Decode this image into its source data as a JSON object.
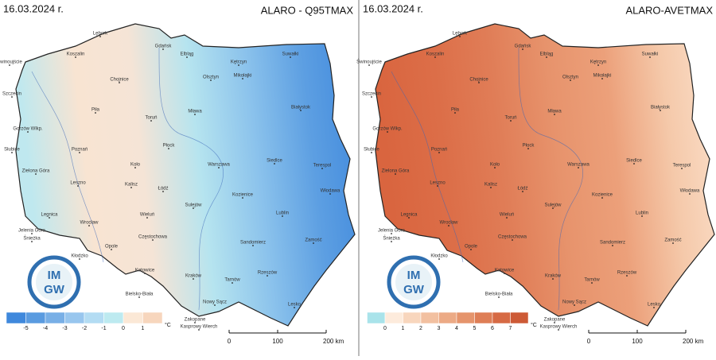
{
  "panels": [
    {
      "date": "16.03.2024 r.",
      "title": "ALARO - Q95TMAX",
      "legend": {
        "ticks": [
          -5,
          -4,
          -3,
          -2,
          -1,
          0,
          1
        ],
        "unit": "°C",
        "colors": [
          "#3f88dc",
          "#5a9be0",
          "#78afe6",
          "#98c6ee",
          "#b3dcf3",
          "#bdeaf0",
          "#fbe8d6",
          "#f7d6bd"
        ]
      },
      "map_colors": [
        "#bfe8ef",
        "#f8e4d2",
        "#f5e4d6",
        "#b6e4ef",
        "#8cc3ec",
        "#5d9fe2",
        "#3f88dc"
      ]
    },
    {
      "date": "16.03.2024 r.",
      "title": "ALARO-AVETMAX",
      "legend": {
        "ticks": [
          0,
          1,
          2,
          3,
          4,
          5,
          6,
          7
        ],
        "unit": "°C",
        "colors": [
          "#a9e3ea",
          "#fdebdc",
          "#f8d6bd",
          "#f2c0a0",
          "#ecaa85",
          "#e5946c",
          "#de7e56",
          "#d66a44",
          "#cd5a36"
        ]
      },
      "map_colors": [
        "#d9653f",
        "#dc6e48",
        "#e07d57",
        "#e7936c",
        "#eca07a",
        "#f5c9aa",
        "#fbe0cb"
      ]
    }
  ],
  "logo": {
    "top": "IM",
    "bottom": "GW"
  },
  "scale_bar": {
    "ticks": [
      0,
      100,
      {
        "value": 200,
        "label": "200 km"
      }
    ]
  },
  "cities": [
    "Lębork",
    "Gdańsk",
    "Elbląg",
    "Kętrzyn",
    "Suwałki",
    "Świnoujście",
    "Koszalin",
    "Chojnice",
    "Olsztyn",
    "Mikołajki",
    "Szczecin",
    "Piła",
    "Toruń",
    "Mława",
    "Białystok",
    "Gorzów Wlkp.",
    "Płock",
    "Poznań",
    "Słubice",
    "Koło",
    "Warszawa",
    "Siedlce",
    "Terespol",
    "Zielona Góra",
    "Leszno",
    "Kalisz",
    "Łódź",
    "Kozienice",
    "Włodawa",
    "Legnica",
    "Wieluń",
    "Sulejów",
    "Lublin",
    "Jelenia Góra",
    "Wrocław",
    "Częstochowa",
    "Śnieżka",
    "Opole",
    "Kłodzko",
    "Katowice",
    "Sandomierz",
    "Zamość",
    "Kraków",
    "Tarnów",
    "Rzeszów",
    "Bielsko-Biała",
    "Nowy Sącz",
    "Lesko",
    "Zakopane",
    "Kasprowy Wierch"
  ]
}
